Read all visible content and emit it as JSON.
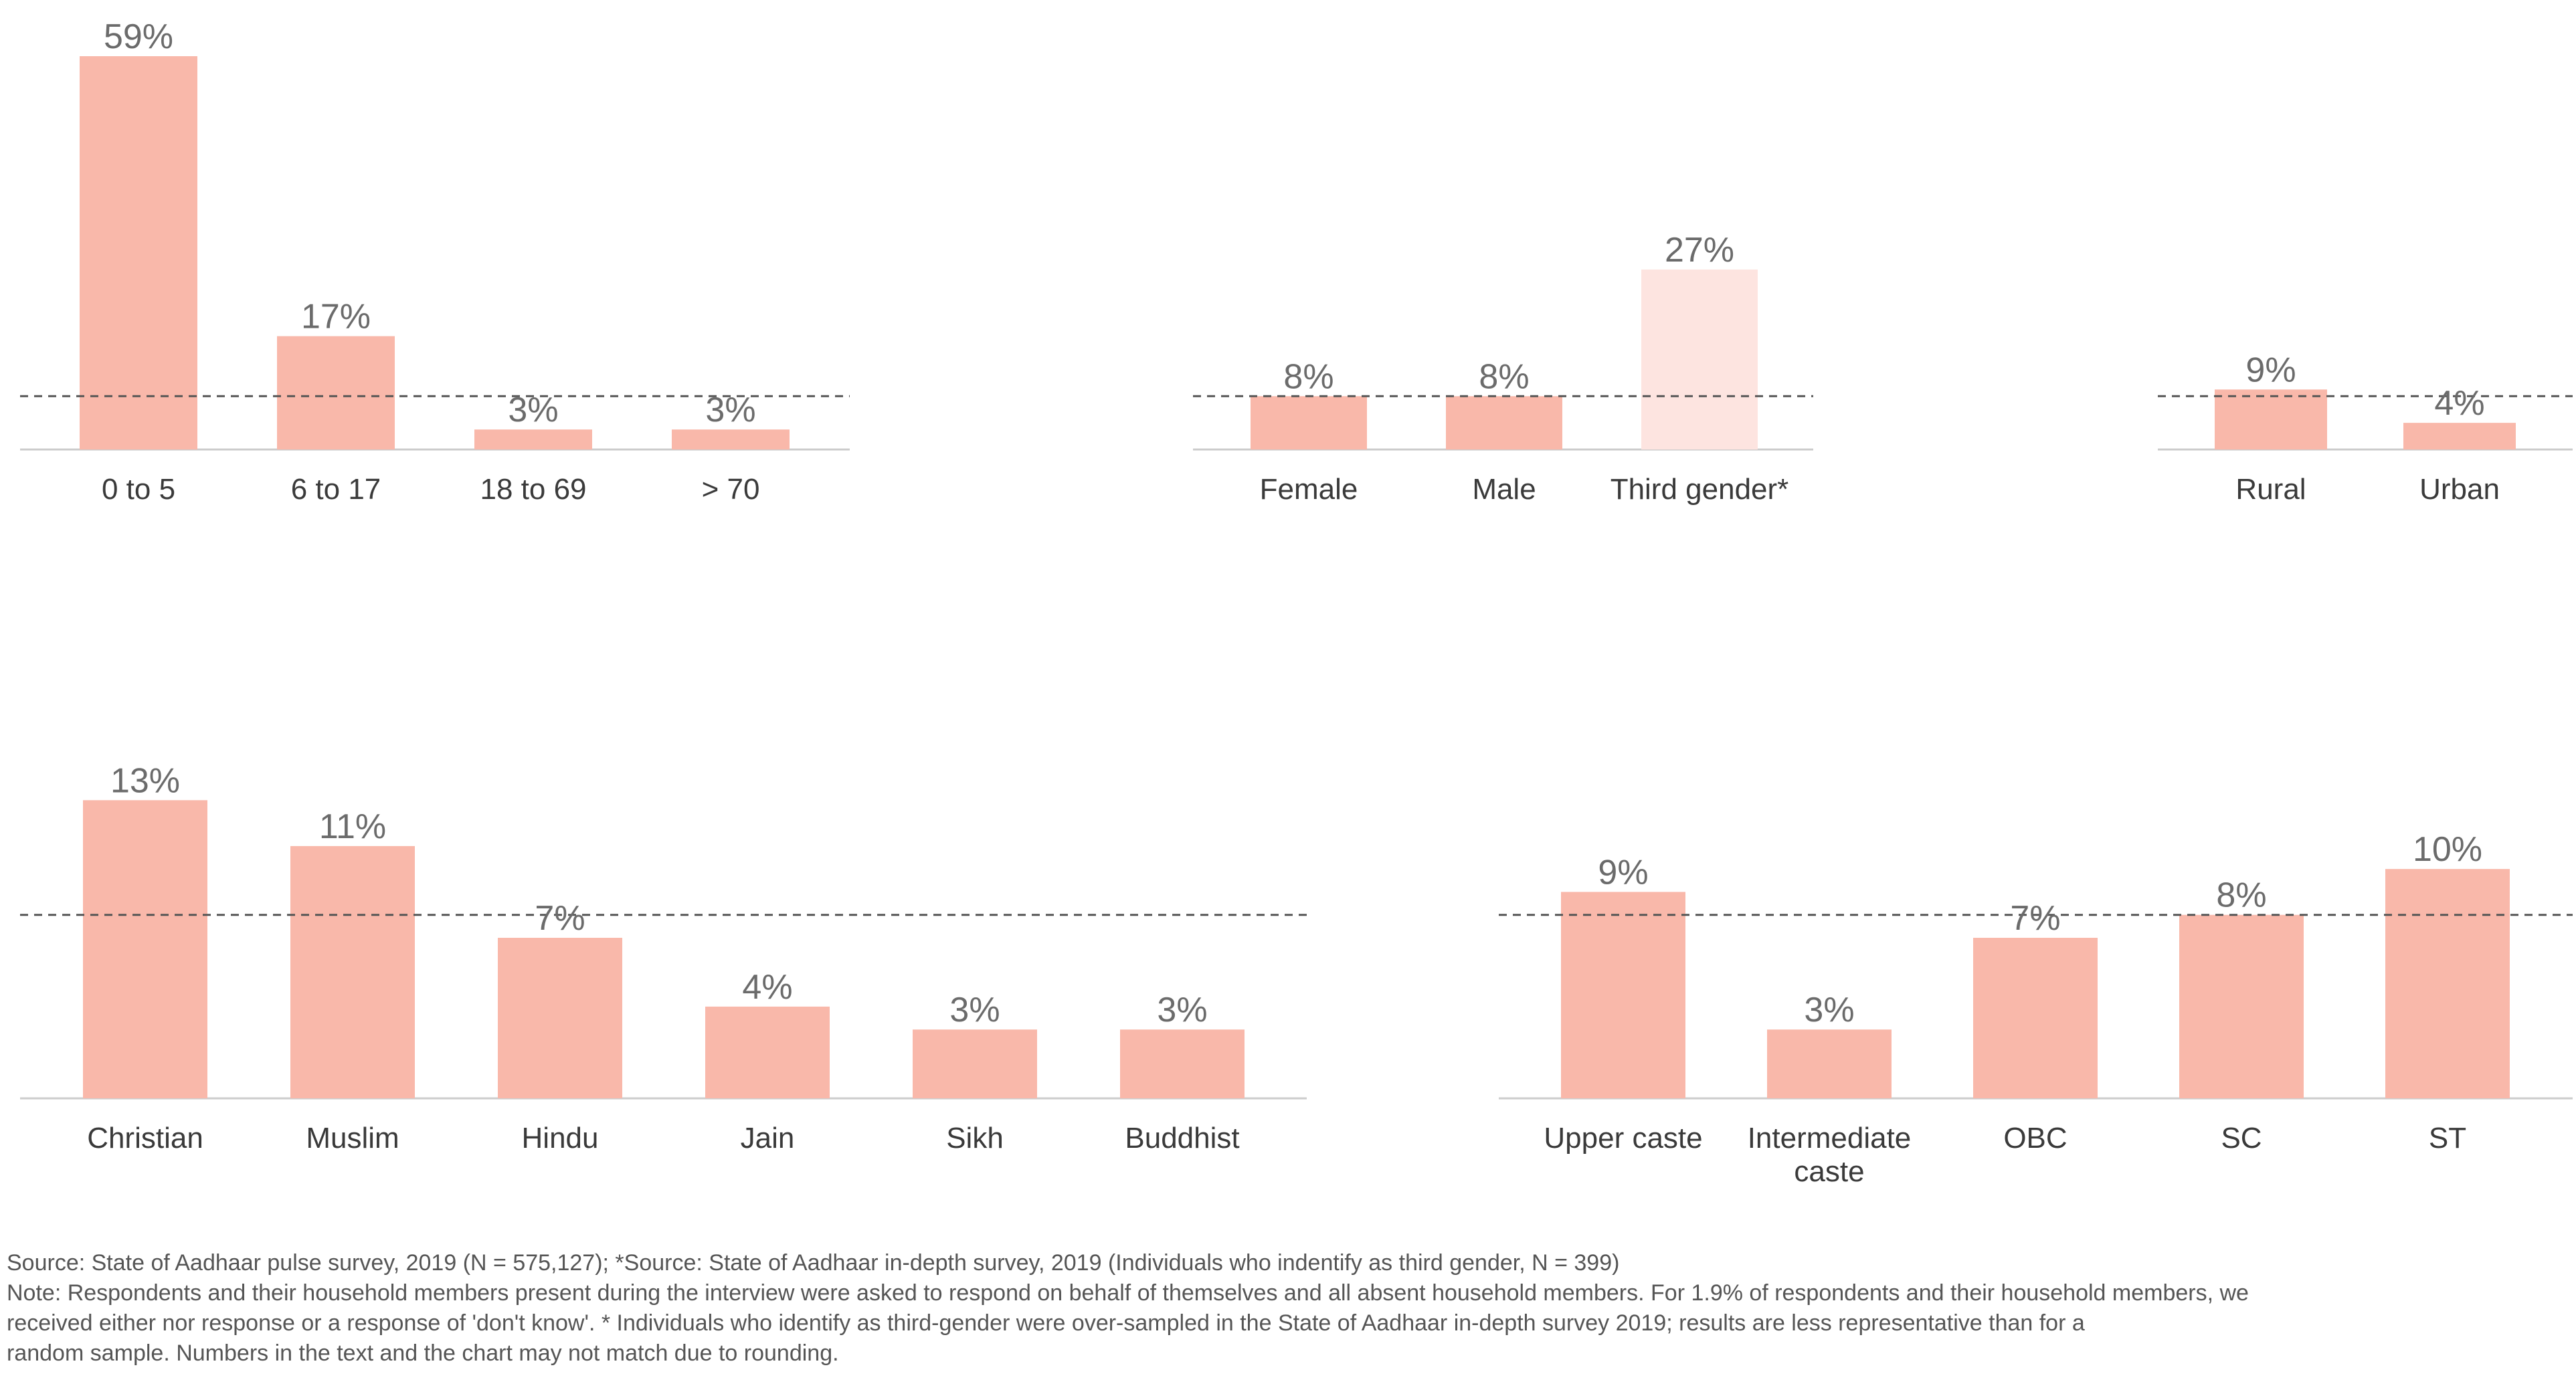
{
  "colors": {
    "bar": "#f9b8aa",
    "bar_highlight": "#fde4e0",
    "axis": "#cccccc",
    "reference_line": "#555555"
  },
  "chart_data": [
    {
      "type": "bar",
      "categories": [
        "0 to 5",
        "6 to 17",
        "18 to 69",
        "> 70"
      ],
      "values": [
        59,
        17,
        3,
        3
      ],
      "value_labels": [
        "59%",
        "17%",
        "3%",
        "3%"
      ],
      "reference_line": 8,
      "ylim": [
        0,
        59
      ]
    },
    {
      "type": "bar",
      "categories": [
        "Female",
        "Male",
        "Third gender*"
      ],
      "values": [
        8,
        8,
        27
      ],
      "value_labels": [
        "8%",
        "8%",
        "27%"
      ],
      "highlight": [
        false,
        false,
        true
      ],
      "reference_line": 8,
      "ylim": [
        0,
        59
      ]
    },
    {
      "type": "bar",
      "categories": [
        "Rural",
        "Urban"
      ],
      "values": [
        9,
        4
      ],
      "value_labels": [
        "9%",
        "4%"
      ],
      "reference_line": 8,
      "ylim": [
        0,
        59
      ]
    },
    {
      "type": "bar",
      "categories": [
        "Christian",
        "Muslim",
        "Hindu",
        "Jain",
        "Sikh",
        "Buddhist"
      ],
      "values": [
        13,
        11,
        7,
        4,
        3,
        3
      ],
      "value_labels": [
        "13%",
        "11%",
        "7%",
        "4%",
        "3%",
        "3%"
      ],
      "reference_line": 8,
      "ylim": [
        0,
        14
      ]
    },
    {
      "type": "bar",
      "categories": [
        "Upper caste",
        "Intermediate caste",
        "OBC",
        "SC",
        "ST"
      ],
      "category_lines": [
        [
          "Upper caste"
        ],
        [
          "Intermediate",
          "caste"
        ],
        [
          "OBC"
        ],
        [
          "SC"
        ],
        [
          "ST"
        ]
      ],
      "values": [
        9,
        3,
        7,
        8,
        10
      ],
      "value_labels": [
        "9%",
        "3%",
        "7%",
        "8%",
        "10%"
      ],
      "reference_line": 8,
      "ylim": [
        0,
        14
      ]
    }
  ],
  "footnotes": {
    "source": "Source: State of Aadhaar pulse survey, 2019 (N = 575,127); *Source: State of Aadhaar in-depth survey, 2019 (Individuals who indentify as third gender, N = 399)",
    "note_line1": "Note: Respondents and their household members present during the interview were asked to respond on behalf of themselves and all absent household members. For 1.9% of respondents and their household members, we",
    "note_line2": "received either nor response or a response of 'don't know'. * Individuals who identify as third-gender were over-sampled in the State of Aadhaar in-depth survey 2019; results are less representative than for a",
    "note_line3": "random sample. Numbers in the text and the chart may not match due to rounding."
  }
}
